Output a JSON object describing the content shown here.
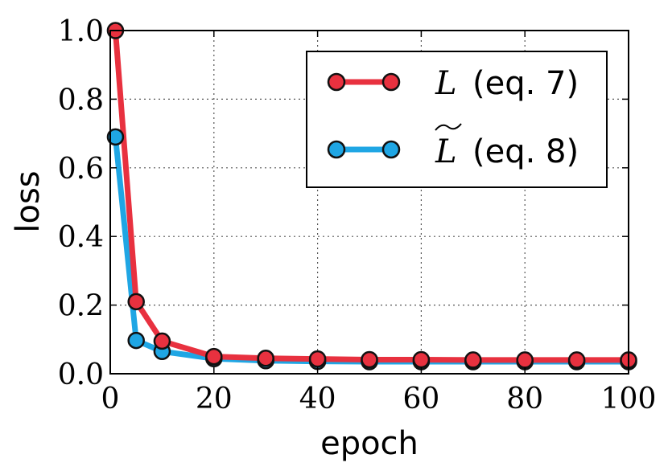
{
  "chart_data": {
    "type": "line",
    "xlabel": "epoch",
    "ylabel": "loss",
    "xlim": [
      0,
      100
    ],
    "ylim": [
      0.0,
      1.0
    ],
    "xticks": [
      "0",
      "20",
      "40",
      "60",
      "80",
      "100"
    ],
    "yticks": [
      "0.0",
      "0.2",
      "0.4",
      "0.6",
      "0.8",
      "1.0"
    ],
    "grid": true,
    "legend_position": "top-right",
    "series": [
      {
        "name": "L (eq. 7)",
        "legend_symbol": "L",
        "legend_suffix": "(eq. 7)",
        "color": "#e8313f",
        "x": [
          1,
          5,
          10,
          20,
          30,
          40,
          50,
          60,
          70,
          80,
          90,
          100
        ],
        "y": [
          1.0,
          0.21,
          0.095,
          0.05,
          0.045,
          0.043,
          0.041,
          0.041,
          0.04,
          0.04,
          0.04,
          0.04
        ]
      },
      {
        "name": "L̃ (eq. 8)",
        "legend_symbol": "L",
        "legend_suffix": "(eq. 8)",
        "color": "#1fa6e4",
        "x": [
          1,
          5,
          10,
          20,
          30,
          40,
          50,
          60,
          70,
          80,
          90,
          100
        ],
        "y": [
          0.69,
          0.097,
          0.065,
          0.044,
          0.038,
          0.036,
          0.035,
          0.035,
          0.035,
          0.035,
          0.035,
          0.035
        ]
      }
    ]
  }
}
